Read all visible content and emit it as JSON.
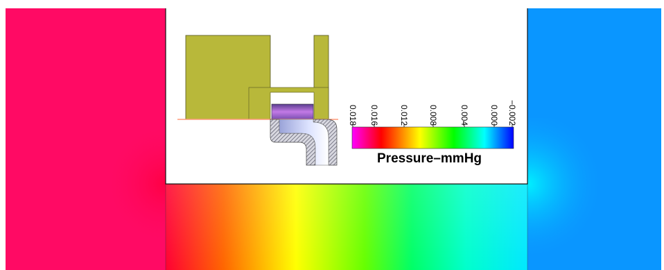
{
  "legend": {
    "title": "Pressure–mmHg",
    "ticks": [
      "0.018",
      "0.016",
      "0.012",
      "0.008",
      "0.004",
      "0.000",
      "−0.002"
    ],
    "colors": [
      "#ff00ff",
      "#ff0000",
      "#ffff00",
      "#00ff00",
      "#00ffff",
      "#0000ff"
    ]
  },
  "field_colors": {
    "left_region": "#ff0a64",
    "right_region": "#0a96ff",
    "channel_gradient": [
      "#ff0033",
      "#ff6600",
      "#ffff00",
      "#66ff00",
      "#00ff66",
      "#00ffcc",
      "#00e8ff"
    ]
  },
  "inset_colors": {
    "solid_parts": "#b8b83a",
    "solid_edge": "#555522",
    "cutline": "#ff9a7a"
  }
}
